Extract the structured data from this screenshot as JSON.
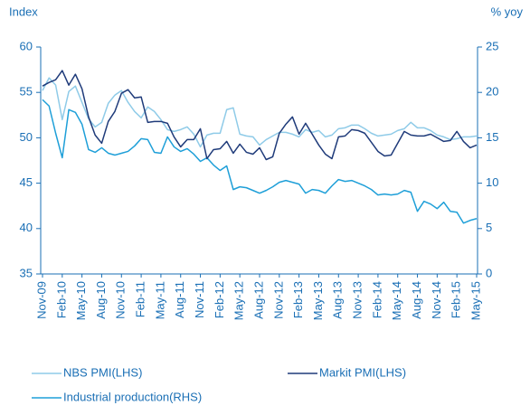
{
  "chart_data": {
    "type": "line",
    "y_label": "Index",
    "y2_label": "% yoy",
    "categories": [
      "Nov-09",
      null,
      null,
      "Feb-10",
      null,
      null,
      "May-10",
      null,
      null,
      "Aug-10",
      null,
      null,
      "Nov-10",
      null,
      null,
      "Feb-11",
      null,
      null,
      "May-11",
      null,
      null,
      "Aug-11",
      null,
      null,
      "Nov-11",
      null,
      null,
      "Feb-12",
      null,
      null,
      "May-12",
      null,
      null,
      "Aug-12",
      null,
      null,
      "Nov-12",
      null,
      null,
      "Feb-13",
      null,
      null,
      "May-13",
      null,
      null,
      "Aug-13",
      null,
      null,
      "Nov-13",
      null,
      null,
      "Feb-14",
      null,
      null,
      "May-14",
      null,
      null,
      "Aug-14",
      null,
      null,
      "Nov-14",
      null,
      null,
      "Feb-15",
      null,
      null,
      "May-15"
    ],
    "series": [
      {
        "name": "NBS PMI(LHS)",
        "color": "#8fcbe8",
        "values": [
          55.2,
          56.6,
          55.8,
          52.0,
          55.1,
          55.7,
          53.9,
          52.1,
          51.2,
          51.7,
          53.8,
          54.7,
          55.2,
          53.9,
          52.9,
          52.2,
          53.4,
          52.9,
          52.0,
          50.9,
          50.7,
          50.9,
          51.2,
          50.4,
          49.0,
          50.3,
          50.5,
          50.5,
          53.1,
          53.3,
          50.4,
          50.2,
          50.1,
          49.2,
          49.8,
          50.2,
          50.6,
          50.6,
          50.4,
          50.1,
          50.9,
          50.6,
          50.8,
          50.1,
          50.3,
          51.0,
          51.1,
          51.4,
          51.4,
          51.0,
          50.5,
          50.2,
          50.3,
          50.4,
          50.8,
          51.0,
          51.7,
          51.1,
          51.1,
          50.8,
          50.3,
          50.1,
          49.8,
          49.9,
          50.1,
          50.1,
          50.2
        ]
      },
      {
        "name": "Markit PMI(LHS)",
        "color": "#1f3b7a",
        "values": [
          55.7,
          56.1,
          56.4,
          57.4,
          55.8,
          57.0,
          55.4,
          52.3,
          50.3,
          49.4,
          51.8,
          52.9,
          54.9,
          55.3,
          54.4,
          54.5,
          51.7,
          51.8,
          51.8,
          51.6,
          50.1,
          49.0,
          49.8,
          49.8,
          51.0,
          47.7,
          48.7,
          48.8,
          49.6,
          48.3,
          49.3,
          48.4,
          48.2,
          48.9,
          47.6,
          47.9,
          50.5,
          51.5,
          52.3,
          50.4,
          51.6,
          50.4,
          49.2,
          48.2,
          47.7,
          50.1,
          50.2,
          50.9,
          50.8,
          50.5,
          49.5,
          48.5,
          48.0,
          48.1,
          49.4,
          50.7,
          50.3,
          50.2,
          50.2,
          50.4,
          50.0,
          49.6,
          49.7,
          50.7,
          49.6,
          48.9,
          49.2
        ]
      },
      {
        "name": "Industrial production(RHS)",
        "color": "#1e9fd8",
        "axis": "y2",
        "values": [
          19.2,
          18.5,
          15.5,
          12.8,
          18.1,
          17.8,
          16.5,
          13.7,
          13.4,
          13.9,
          13.3,
          13.1,
          13.3,
          13.5,
          14.1,
          14.9,
          14.8,
          13.4,
          13.3,
          15.1,
          14.0,
          13.5,
          13.8,
          13.2,
          12.4,
          12.8,
          12.0,
          11.4,
          11.9,
          9.3,
          9.6,
          9.5,
          9.2,
          8.9,
          9.2,
          9.6,
          10.1,
          10.3,
          10.1,
          9.9,
          8.9,
          9.3,
          9.2,
          8.9,
          9.7,
          10.4,
          10.2,
          10.3,
          10.0,
          9.7,
          9.3,
          8.7,
          8.8,
          8.7,
          8.8,
          9.2,
          9.0,
          6.9,
          8.0,
          7.7,
          7.2,
          7.9,
          6.9,
          6.8,
          5.6,
          5.9,
          6.1
        ]
      }
    ],
    "ylim": [
      35,
      60
    ],
    "yticks": [
      35,
      40,
      45,
      50,
      55,
      60
    ],
    "y2lim": [
      0,
      25
    ],
    "y2ticks": [
      0,
      5,
      10,
      15,
      20,
      25
    ],
    "grid": false
  }
}
